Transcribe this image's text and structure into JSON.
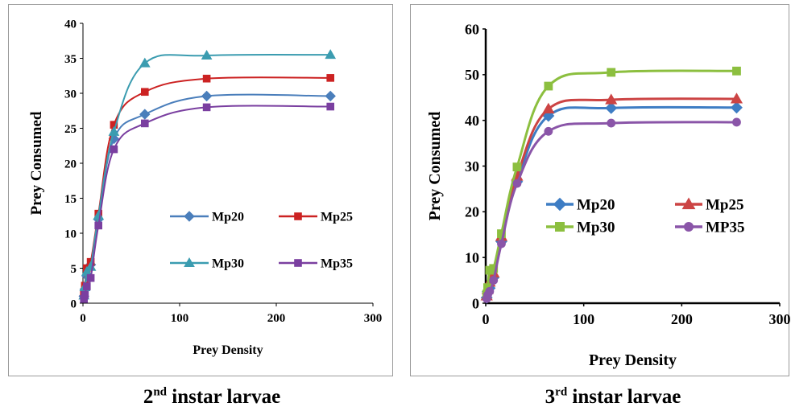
{
  "chart_data": [
    {
      "type": "line",
      "xlabel": "Prey Density",
      "ylabel": "Prey Consumed",
      "xlim": [
        0,
        300
      ],
      "ylim": [
        0,
        40
      ],
      "xticks": [
        "0",
        "100",
        "200",
        "300"
      ],
      "yticks": [
        "0",
        "5",
        "10",
        "15",
        "20",
        "25",
        "30",
        "35",
        "40"
      ],
      "x": [
        1,
        2,
        4,
        8,
        16,
        32,
        64,
        128,
        256
      ],
      "series": [
        {
          "name": "Mp20",
          "color": "#4a7ebb",
          "marker": "diamond",
          "values": [
            1.0,
            2.0,
            3.9,
            5.5,
            12.0,
            23.5,
            27.0,
            29.6,
            29.6
          ]
        },
        {
          "name": "Mp25",
          "color": "#cc2222",
          "marker": "square",
          "values": [
            1.2,
            2.5,
            5.0,
            5.9,
            12.8,
            25.5,
            30.2,
            32.1,
            32.2
          ]
        },
        {
          "name": "Mp30",
          "color": "#3b9cb0",
          "marker": "triangle",
          "values": [
            1.1,
            2.3,
            4.5,
            5.2,
            12.5,
            24.5,
            34.3,
            35.4,
            35.5
          ]
        },
        {
          "name": "Mp35",
          "color": "#7a3fa0",
          "marker": "square",
          "values": [
            0.6,
            1.2,
            2.4,
            3.6,
            11.1,
            22.0,
            25.7,
            28.0,
            28.1
          ]
        }
      ],
      "legend": "inside-right",
      "grid": false
    },
    {
      "type": "line",
      "xlabel": "Prey Density",
      "ylabel": "Prey Consumed",
      "xlim": [
        0,
        300
      ],
      "ylim": [
        0,
        60
      ],
      "xticks": [
        "0",
        "100",
        "200",
        "300"
      ],
      "yticks": [
        "0",
        "10",
        "20",
        "30",
        "40",
        "50",
        "60"
      ],
      "x": [
        1,
        2,
        4,
        8,
        16,
        32,
        64,
        128,
        256
      ],
      "series": [
        {
          "name": "Mp20",
          "color": "#3e7dc4",
          "marker": "diamond",
          "values": [
            1.2,
            2.5,
            3.3,
            5.6,
            13.5,
            26.6,
            41.0,
            42.7,
            42.8
          ]
        },
        {
          "name": "Mp25",
          "color": "#cc4444",
          "marker": "triangle",
          "values": [
            1.6,
            3.0,
            4.6,
            6.6,
            14.6,
            27.8,
            42.5,
            44.5,
            44.7
          ]
        },
        {
          "name": "Mp30",
          "color": "#8cbf3f",
          "marker": "square",
          "values": [
            2.0,
            3.4,
            7.2,
            7.6,
            15.2,
            29.8,
            47.5,
            50.5,
            50.8
          ]
        },
        {
          "name": "MP35",
          "color": "#8a55a8",
          "marker": "circle",
          "values": [
            1.0,
            1.8,
            2.6,
            5.0,
            13.0,
            26.2,
            37.6,
            39.4,
            39.6
          ]
        }
      ],
      "legend": "inside-right",
      "grid": false
    }
  ],
  "captions": [
    {
      "main": "2",
      "sup": "nd",
      "rest": " instar larvae"
    },
    {
      "main": "3",
      "sup": "rd",
      "rest": " instar larvae"
    }
  ]
}
